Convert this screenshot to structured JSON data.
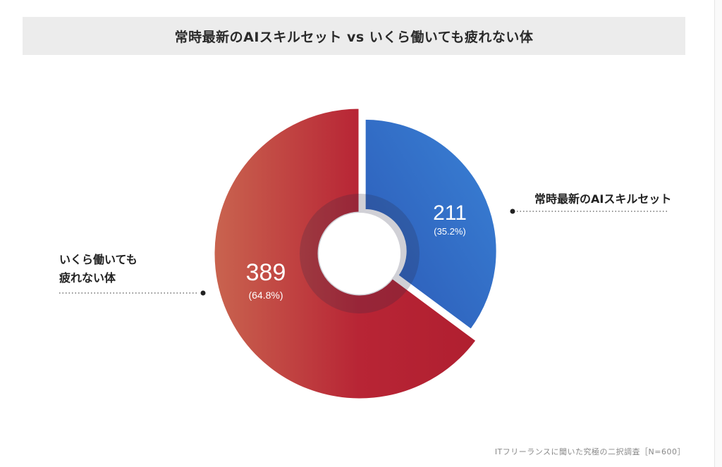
{
  "chart_data": {
    "type": "pie",
    "variant": "donut",
    "title": "常時最新のAIスキルセット vs いくら働いても疲れない体",
    "slices": [
      {
        "label": "常時最新のAIスキルセット",
        "value": 211,
        "value_label": "211",
        "percent_label": "(35.2%)",
        "color": "#2f64bf"
      },
      {
        "label": "いくら働いても\n疲れない体",
        "value": 389,
        "value_label": "389",
        "percent_label": "(64.8%)",
        "color": "#b82535"
      }
    ],
    "legend": "callouts"
  },
  "labels": {
    "right_callout": "常時最新のAIスキルセット",
    "left_callout_line1": "いくら働いても",
    "left_callout_line2": "疲れない体"
  },
  "source": "ITフリーランスに聞いた究極の二択調査［N=600］"
}
